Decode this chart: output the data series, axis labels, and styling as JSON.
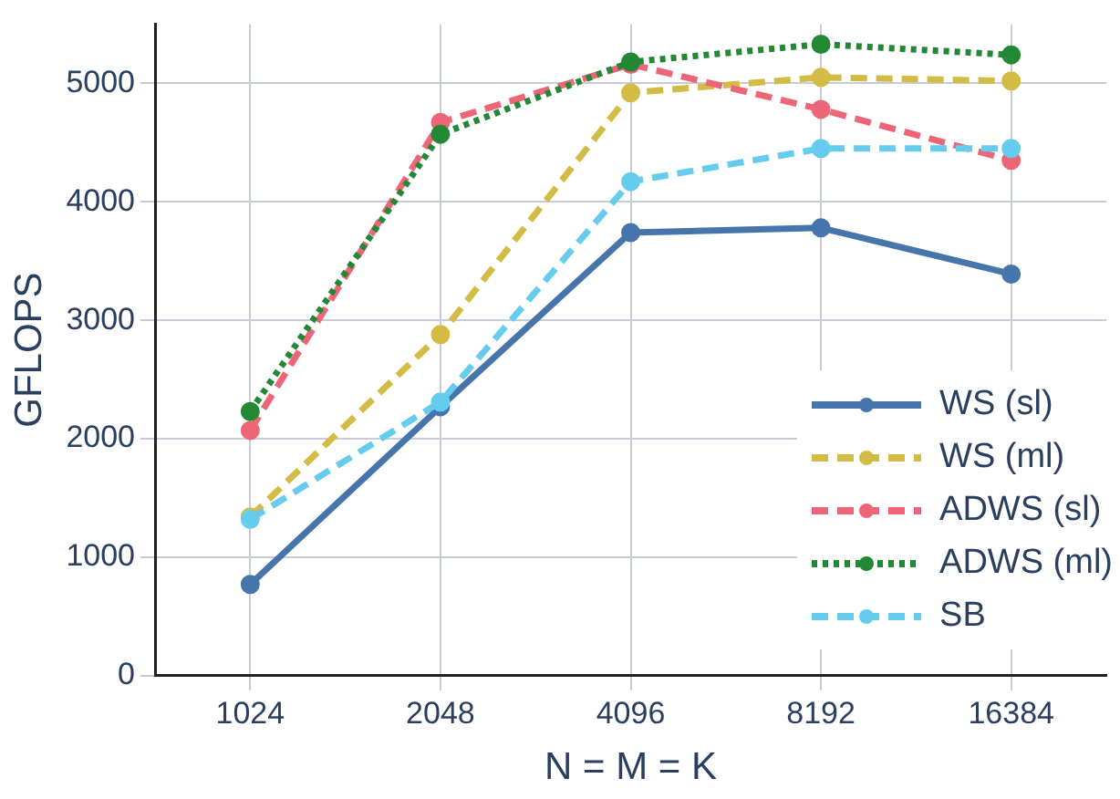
{
  "chart_data": {
    "type": "line",
    "xlabel": "N = M = K",
    "ylabel": "GFLOPS",
    "categories": [
      "1024",
      "2048",
      "4096",
      "8192",
      "16384"
    ],
    "series": [
      {
        "name": "WS (sl)",
        "color": "#4575ab",
        "values": [
          770,
          2270,
          3740,
          3780,
          3390
        ],
        "line_style": "solid"
      },
      {
        "name": "WS (ml)",
        "color": "#d4bb44",
        "values": [
          1340,
          2880,
          4920,
          5050,
          5020
        ],
        "line_style": "dashed"
      },
      {
        "name": "ADWS (sl)",
        "color": "#ed6677",
        "values": [
          2070,
          4670,
          5160,
          4780,
          4350
        ],
        "line_style": "dashed"
      },
      {
        "name": "ADWS (ml)",
        "color": "#228833",
        "values": [
          2230,
          4570,
          5180,
          5330,
          5240
        ],
        "line_style": "dotted"
      },
      {
        "name": "SB",
        "color": "#66ccee",
        "values": [
          1320,
          2310,
          4170,
          4450,
          4450
        ],
        "line_style": "dashed"
      }
    ],
    "ylim": [
      0,
      5500
    ],
    "yticks": [
      0,
      1000,
      2000,
      3000,
      4000,
      5000
    ],
    "grid": true,
    "legend": "bottom right",
    "marker": "circle"
  }
}
